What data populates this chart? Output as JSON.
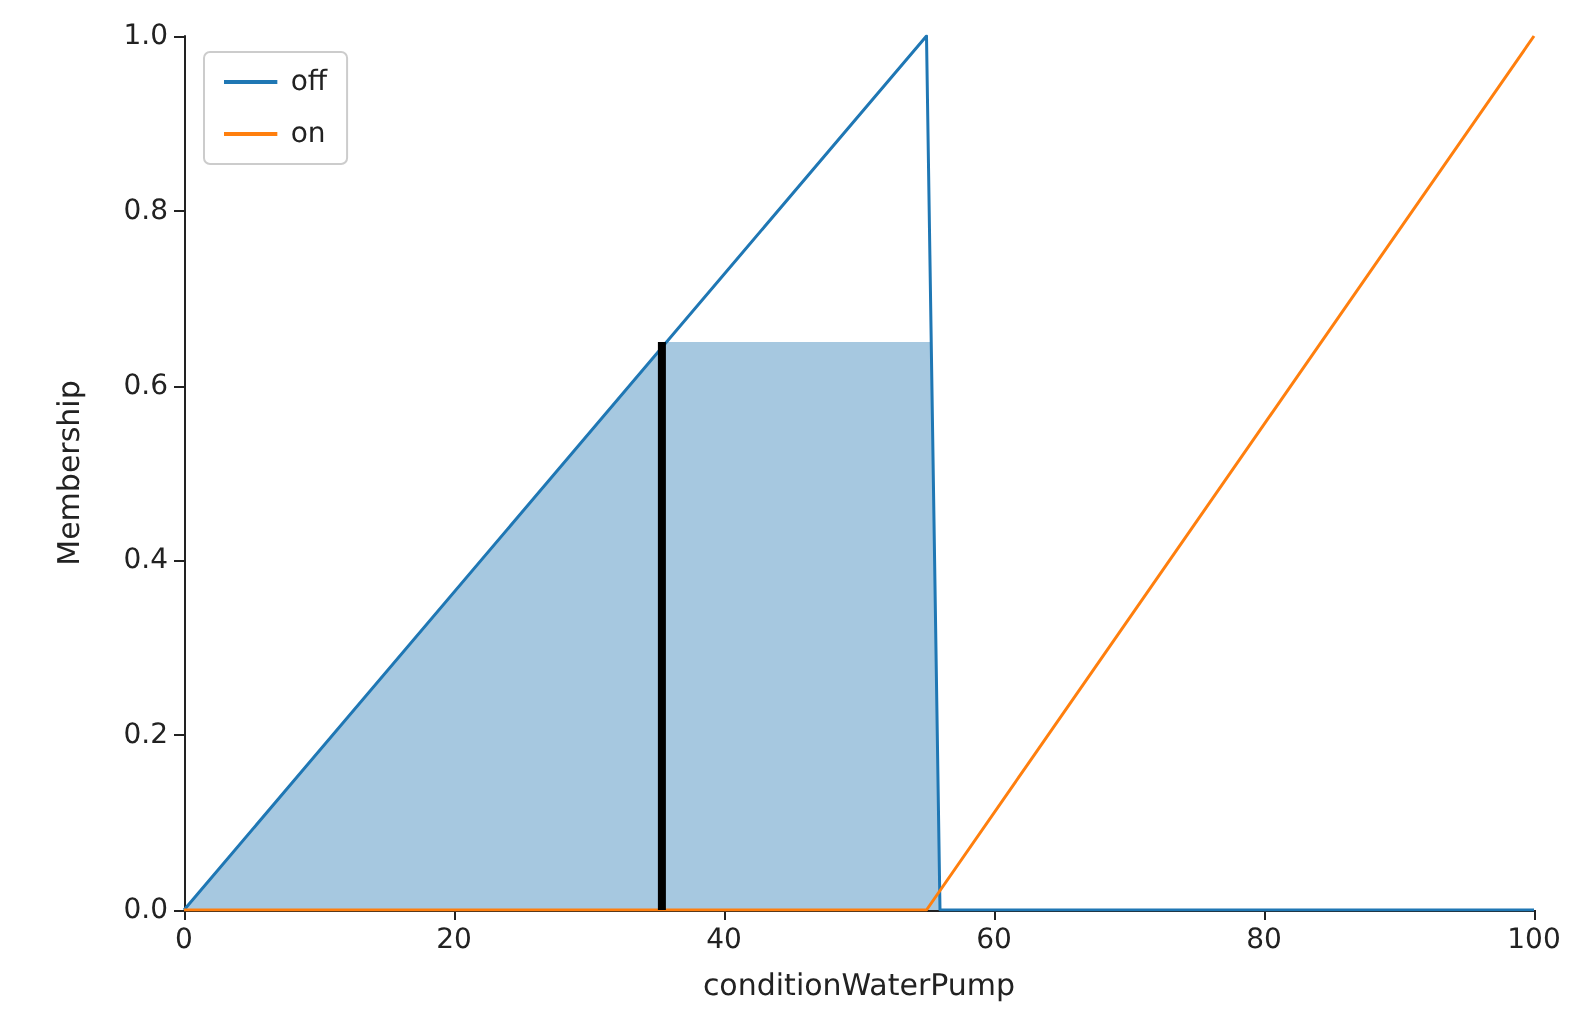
{
  "chart_data": {
    "type": "line",
    "xlabel": "conditionWaterPump",
    "ylabel": "Membership",
    "xlim": [
      0,
      100
    ],
    "xticks": [
      0,
      20,
      40,
      60,
      80,
      100
    ],
    "ylim": [
      0,
      1
    ],
    "yticks": [
      {
        "value": 0,
        "label": "0.0"
      },
      {
        "value": 0.2,
        "label": "0.2"
      },
      {
        "value": 0.4,
        "label": "0.4"
      },
      {
        "value": 0.6,
        "label": "0.6"
      },
      {
        "value": 0.8,
        "label": "0.8"
      },
      {
        "value": 1,
        "label": "1.0"
      }
    ],
    "series": [
      {
        "type": "area",
        "color": "#a6c8e0",
        "x": [
          0,
          35.75,
          55.35,
          56,
          100
        ],
        "values": [
          0,
          0.65,
          0.65,
          0,
          0
        ]
      },
      {
        "name": "off",
        "color": "#1f77b4",
        "x": [
          0,
          55,
          56,
          100
        ],
        "values": [
          0,
          1,
          0,
          0
        ]
      },
      {
        "name": "on",
        "color": "#ff7f0e",
        "x": [
          0,
          55,
          100
        ],
        "values": [
          0,
          0,
          1
        ]
      },
      {
        "color": "#000000",
        "x": [
          35.4,
          35.4
        ],
        "values": [
          0,
          0.65
        ]
      }
    ],
    "legend": "top left",
    "grid": false,
    "marker": "none",
    "line_style": "solid"
  }
}
